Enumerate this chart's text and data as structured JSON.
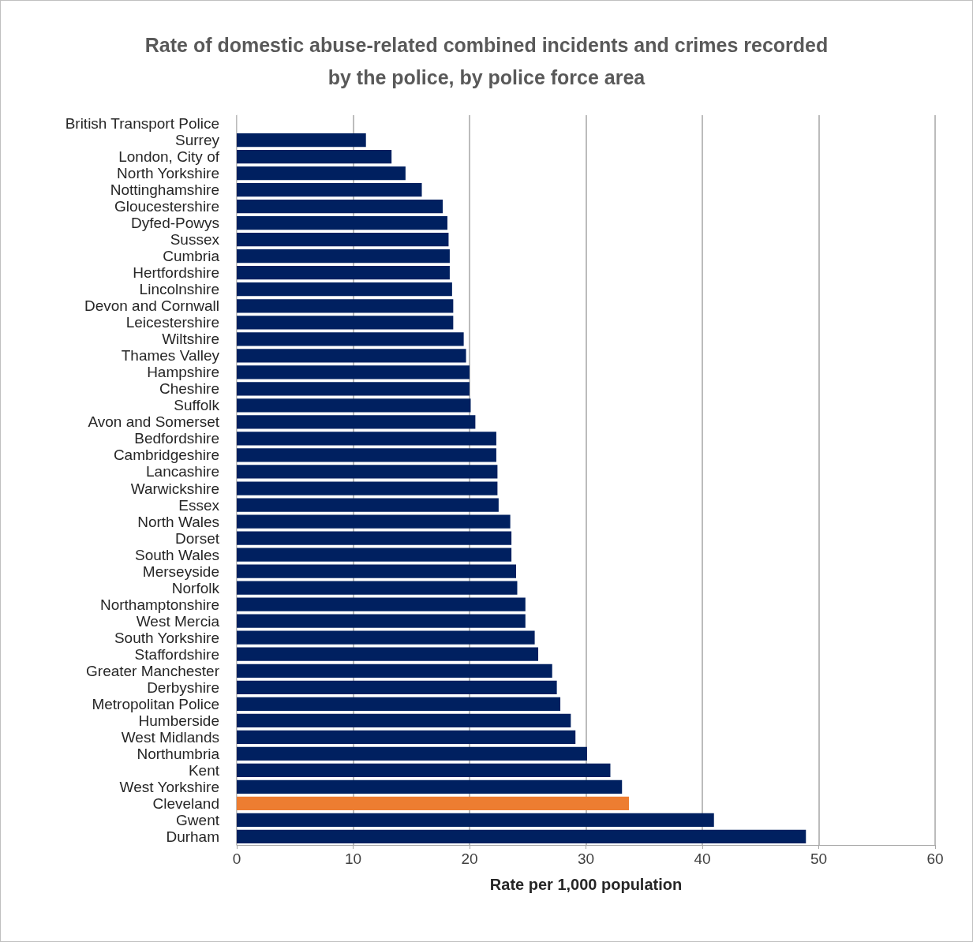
{
  "chart_data": {
    "type": "bar",
    "orientation": "horizontal",
    "title": "Rate of domestic abuse-related combined incidents and crimes recorded\nby the police, by police force area",
    "xlabel": "Rate per 1,000 population",
    "categories": [
      "British Transport Police",
      "Surrey",
      "London, City of",
      "North Yorkshire",
      "Nottinghamshire",
      "Gloucestershire",
      "Dyfed-Powys",
      "Sussex",
      "Cumbria",
      "Hertfordshire",
      "Lincolnshire",
      "Devon and Cornwall",
      "Leicestershire",
      "Wiltshire",
      "Thames Valley",
      "Hampshire",
      "Cheshire",
      "Suffolk",
      "Avon and Somerset",
      "Bedfordshire",
      "Cambridgeshire",
      "Lancashire",
      "Warwickshire",
      "Essex",
      "North Wales",
      "Dorset",
      "South Wales",
      "Merseyside",
      "Norfolk",
      "Northamptonshire",
      "West Mercia",
      "South Yorkshire",
      "Staffordshire",
      "Greater Manchester",
      "Derbyshire",
      "Metropolitan Police",
      "Humberside",
      "West Midlands",
      "Northumbria",
      "Kent",
      "West Yorkshire",
      "Cleveland",
      "Gwent",
      "Durham"
    ],
    "values": [
      null,
      11.1,
      13.3,
      14.5,
      15.9,
      17.7,
      18.1,
      18.2,
      18.3,
      18.3,
      18.5,
      18.6,
      18.6,
      19.5,
      19.7,
      20.0,
      20.0,
      20.1,
      20.5,
      22.3,
      22.3,
      22.4,
      22.4,
      22.5,
      23.5,
      23.6,
      23.6,
      24.0,
      24.1,
      24.8,
      24.8,
      25.6,
      25.9,
      27.1,
      27.5,
      27.8,
      28.7,
      29.1,
      30.1,
      32.1,
      33.1,
      33.7,
      41.0,
      48.9
    ],
    "colors": [
      "#002060",
      "#002060",
      "#002060",
      "#002060",
      "#002060",
      "#002060",
      "#002060",
      "#002060",
      "#002060",
      "#002060",
      "#002060",
      "#002060",
      "#002060",
      "#002060",
      "#002060",
      "#002060",
      "#002060",
      "#002060",
      "#002060",
      "#002060",
      "#002060",
      "#002060",
      "#002060",
      "#002060",
      "#002060",
      "#002060",
      "#002060",
      "#002060",
      "#002060",
      "#002060",
      "#002060",
      "#002060",
      "#002060",
      "#002060",
      "#002060",
      "#002060",
      "#002060",
      "#002060",
      "#002060",
      "#002060",
      "#002060",
      "#ed7d31",
      "#002060",
      "#002060"
    ],
    "xlim": [
      0,
      60
    ],
    "xticks": [
      0,
      10,
      20,
      30,
      40,
      50,
      60
    ],
    "grid": "x"
  }
}
